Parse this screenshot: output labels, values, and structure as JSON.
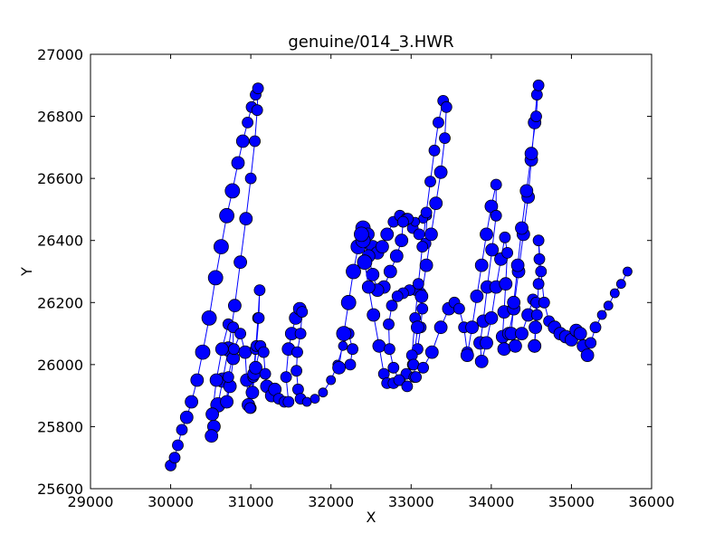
{
  "chart_data": {
    "type": "scatter",
    "title": "genuine/014_3.HWR",
    "xlabel": "X",
    "ylabel": "Y",
    "xlim": [
      29000,
      36000
    ],
    "ylim": [
      25600,
      27000
    ],
    "xticks": [
      29000,
      30000,
      31000,
      32000,
      33000,
      34000,
      35000,
      36000
    ],
    "yticks": [
      25600,
      25800,
      26000,
      26200,
      26400,
      26600,
      26800,
      27000
    ],
    "grid": false,
    "connected_line": true,
    "marker_color": "#0000ff",
    "line_color": "#0000ff",
    "marker_edge_color": "#000000",
    "strokes": [
      {
        "points": [
          [
            30000,
            25675,
            6
          ],
          [
            30050,
            25700,
            6
          ],
          [
            30090,
            25740,
            6
          ],
          [
            30140,
            25790,
            6
          ],
          [
            30200,
            25830,
            7
          ],
          [
            30260,
            25880,
            7
          ],
          [
            30330,
            25950,
            7
          ],
          [
            30400,
            26040,
            8
          ],
          [
            30480,
            26150,
            8
          ],
          [
            30560,
            26280,
            8
          ],
          [
            30630,
            26380,
            8
          ],
          [
            30700,
            26480,
            8
          ],
          [
            30770,
            26560,
            8
          ],
          [
            30840,
            26650,
            7
          ],
          [
            30900,
            26720,
            7
          ],
          [
            30960,
            26780,
            6
          ],
          [
            31010,
            26830,
            6
          ],
          [
            31060,
            26870,
            6
          ],
          [
            31090,
            26890,
            6
          ],
          [
            31080,
            26820,
            6
          ],
          [
            31050,
            26720,
            6
          ],
          [
            31000,
            26600,
            6
          ],
          [
            30940,
            26470,
            7
          ],
          [
            30870,
            26330,
            7
          ],
          [
            30800,
            26190,
            7
          ],
          [
            30720,
            26050,
            8
          ],
          [
            30650,
            25950,
            8
          ],
          [
            30590,
            25870,
            8
          ],
          [
            30540,
            25800,
            7
          ],
          [
            30510,
            25770,
            7
          ],
          [
            30520,
            25840,
            7
          ],
          [
            30570,
            25950,
            7
          ],
          [
            30640,
            26050,
            7
          ],
          [
            30720,
            26130,
            6
          ],
          [
            30780,
            26120,
            6
          ],
          [
            30780,
            26020,
            7
          ],
          [
            30740,
            25930,
            7
          ],
          [
            30700,
            25880,
            7
          ],
          [
            30720,
            25960,
            6
          ],
          [
            30790,
            26050,
            6
          ],
          [
            30870,
            26100,
            6
          ],
          [
            30930,
            26040,
            7
          ],
          [
            30950,
            25950,
            7
          ],
          [
            30970,
            25870,
            7
          ],
          [
            31000,
            25860,
            6
          ]
        ]
      },
      {
        "points": [
          [
            30990,
            25860,
            6
          ],
          [
            31030,
            25960,
            6
          ],
          [
            31060,
            26050,
            6
          ],
          [
            31090,
            26150,
            6
          ],
          [
            31110,
            26240,
            6
          ],
          [
            31100,
            26150,
            6
          ],
          [
            31070,
            26060,
            6
          ],
          [
            31040,
            25970,
            7
          ],
          [
            31020,
            25910,
            7
          ],
          [
            31060,
            25990,
            7
          ],
          [
            31120,
            26060,
            6
          ],
          [
            31160,
            26040,
            6
          ],
          [
            31180,
            25970,
            6
          ],
          [
            31200,
            25930,
            7
          ],
          [
            31260,
            25900,
            7
          ],
          [
            31300,
            25920,
            7
          ],
          [
            31350,
            25890,
            6
          ],
          [
            31420,
            25880,
            6
          ],
          [
            31470,
            25880,
            6
          ],
          [
            31440,
            25960,
            6
          ],
          [
            31470,
            26050,
            7
          ],
          [
            31510,
            26100,
            7
          ],
          [
            31560,
            26150,
            7
          ],
          [
            31610,
            26180,
            7
          ],
          [
            31640,
            26170,
            6
          ],
          [
            31620,
            26100,
            6
          ],
          [
            31580,
            26040,
            6
          ],
          [
            31570,
            25980,
            6
          ],
          [
            31590,
            25920,
            6
          ],
          [
            31620,
            25890,
            6
          ],
          [
            31700,
            25880,
            5
          ],
          [
            31800,
            25890,
            5
          ],
          [
            31900,
            25910,
            5
          ],
          [
            32000,
            25950,
            5
          ],
          [
            32080,
            26000,
            5
          ],
          [
            32150,
            26060,
            5
          ],
          [
            32220,
            26100,
            6
          ],
          [
            32270,
            26050,
            6
          ],
          [
            32240,
            26000,
            6
          ]
        ]
      },
      {
        "points": [
          [
            32100,
            25990,
            7
          ],
          [
            32160,
            26100,
            8
          ],
          [
            32220,
            26200,
            8
          ],
          [
            32280,
            26300,
            8
          ],
          [
            32340,
            26380,
            8
          ],
          [
            32400,
            26440,
            8
          ],
          [
            32460,
            26420,
            7
          ],
          [
            32520,
            26380,
            7
          ],
          [
            32580,
            26360,
            7
          ],
          [
            32640,
            26380,
            7
          ],
          [
            32700,
            26420,
            7
          ],
          [
            32780,
            26460,
            6
          ],
          [
            32860,
            26480,
            6
          ],
          [
            32940,
            26470,
            6
          ],
          [
            33020,
            26440,
            6
          ],
          [
            33100,
            26420,
            6
          ],
          [
            33180,
            26390,
            6
          ],
          [
            33200,
            26480,
            5
          ],
          [
            33150,
            26470,
            5
          ],
          [
            33050,
            26460,
            5
          ],
          [
            32960,
            26470,
            6
          ],
          [
            32900,
            26460,
            6
          ],
          [
            32880,
            26400,
            7
          ],
          [
            32820,
            26350,
            7
          ],
          [
            32740,
            26300,
            7
          ],
          [
            32660,
            26250,
            7
          ],
          [
            32580,
            26240,
            7
          ],
          [
            32520,
            26290,
            7
          ],
          [
            32470,
            26350,
            7
          ],
          [
            32400,
            26400,
            8
          ]
        ]
      },
      {
        "points": [
          [
            32380,
            26420,
            8
          ],
          [
            32420,
            26330,
            8
          ],
          [
            32470,
            26250,
            7
          ],
          [
            32530,
            26160,
            7
          ],
          [
            32600,
            26060,
            7
          ],
          [
            32660,
            25970,
            6
          ],
          [
            32700,
            25940,
            6
          ],
          [
            32780,
            25940,
            6
          ],
          [
            32860,
            25950,
            6
          ],
          [
            32940,
            25970,
            6
          ],
          [
            33020,
            26000,
            6
          ],
          [
            33080,
            26050,
            6
          ],
          [
            33120,
            26120,
            6
          ],
          [
            33140,
            26180,
            6
          ],
          [
            33120,
            26230,
            6
          ],
          [
            33060,
            26240,
            6
          ],
          [
            32980,
            26240,
            6
          ],
          [
            32900,
            26230,
            6
          ],
          [
            32830,
            26220,
            6
          ],
          [
            32760,
            26190,
            6
          ],
          [
            32720,
            26130,
            6
          ],
          [
            32730,
            26050,
            6
          ],
          [
            32780,
            25990,
            6
          ],
          [
            32850,
            25950,
            6
          ],
          [
            32950,
            25930,
            6
          ],
          [
            33040,
            25960,
            6
          ]
        ]
      },
      {
        "points": [
          [
            33010,
            26030,
            6
          ],
          [
            33050,
            26150,
            6
          ],
          [
            33090,
            26260,
            6
          ],
          [
            33140,
            26380,
            6
          ],
          [
            33190,
            26490,
            6
          ],
          [
            33240,
            26590,
            6
          ],
          [
            33290,
            26690,
            6
          ],
          [
            33340,
            26780,
            6
          ],
          [
            33400,
            26850,
            6
          ],
          [
            33440,
            26830,
            6
          ],
          [
            33420,
            26730,
            6
          ],
          [
            33370,
            26620,
            7
          ],
          [
            33310,
            26520,
            7
          ],
          [
            33250,
            26420,
            7
          ],
          [
            33190,
            26320,
            7
          ],
          [
            33130,
            26220,
            7
          ],
          [
            33080,
            26120,
            7
          ],
          [
            33030,
            26000,
            6
          ],
          [
            33060,
            25960,
            6
          ],
          [
            33150,
            25990,
            6
          ],
          [
            33260,
            26040,
            7
          ],
          [
            33370,
            26120,
            7
          ],
          [
            33470,
            26180,
            7
          ],
          [
            33540,
            26200,
            6
          ],
          [
            33600,
            26180,
            6
          ],
          [
            33660,
            26120,
            6
          ],
          [
            33700,
            26040,
            6
          ]
        ]
      },
      {
        "points": [
          [
            33700,
            26030,
            7
          ],
          [
            33760,
            26120,
            7
          ],
          [
            33820,
            26220,
            7
          ],
          [
            33880,
            26320,
            7
          ],
          [
            33940,
            26420,
            7
          ],
          [
            34000,
            26510,
            7
          ],
          [
            34060,
            26580,
            6
          ],
          [
            34060,
            26480,
            6
          ],
          [
            34010,
            26370,
            7
          ],
          [
            33950,
            26250,
            7
          ],
          [
            33900,
            26140,
            7
          ],
          [
            33860,
            26070,
            7
          ],
          [
            33880,
            26010,
            7
          ],
          [
            33940,
            26070,
            7
          ],
          [
            34000,
            26150,
            7
          ],
          [
            34060,
            26250,
            7
          ],
          [
            34120,
            26340,
            7
          ],
          [
            34170,
            26410,
            6
          ],
          [
            34200,
            26360,
            6
          ],
          [
            34180,
            26260,
            7
          ],
          [
            34160,
            26170,
            7
          ],
          [
            34140,
            26090,
            7
          ],
          [
            34160,
            26050,
            7
          ],
          [
            34220,
            26100,
            7
          ],
          [
            34280,
            26180,
            7
          ],
          [
            34340,
            26300,
            7
          ],
          [
            34400,
            26420,
            7
          ],
          [
            34460,
            26540,
            7
          ],
          [
            34500,
            26660,
            7
          ],
          [
            34540,
            26780,
            7
          ],
          [
            34570,
            26870,
            6
          ],
          [
            34590,
            26900,
            6
          ],
          [
            34560,
            26800,
            6
          ],
          [
            34500,
            26680,
            7
          ],
          [
            34440,
            26560,
            7
          ],
          [
            34380,
            26440,
            7
          ],
          [
            34330,
            26320,
            7
          ],
          [
            34280,
            26200,
            7
          ],
          [
            34250,
            26100,
            7
          ],
          [
            34300,
            26060,
            7
          ],
          [
            34380,
            26100,
            7
          ],
          [
            34460,
            26160,
            7
          ],
          [
            34520,
            26210,
            6
          ],
          [
            34560,
            26200,
            6
          ],
          [
            34550,
            26120,
            7
          ],
          [
            34540,
            26060,
            7
          ]
        ]
      },
      {
        "points": [
          [
            34540,
            26060,
            7
          ],
          [
            34570,
            26160,
            6
          ],
          [
            34590,
            26260,
            6
          ],
          [
            34600,
            26340,
            6
          ],
          [
            34590,
            26400,
            6
          ],
          [
            34620,
            26300,
            6
          ],
          [
            34660,
            26200,
            6
          ],
          [
            34720,
            26140,
            6
          ],
          [
            34790,
            26120,
            7
          ],
          [
            34860,
            26100,
            7
          ],
          [
            34930,
            26090,
            7
          ],
          [
            35000,
            26080,
            7
          ],
          [
            35060,
            26110,
            7
          ],
          [
            35110,
            26100,
            7
          ],
          [
            35150,
            26060,
            7
          ],
          [
            35200,
            26030,
            7
          ],
          [
            35240,
            26070,
            6
          ],
          [
            35300,
            26120,
            6
          ],
          [
            35380,
            26160,
            5
          ],
          [
            35460,
            26190,
            5
          ],
          [
            35540,
            26230,
            5
          ],
          [
            35620,
            26260,
            5
          ],
          [
            35700,
            26300,
            5
          ]
        ]
      }
    ]
  }
}
